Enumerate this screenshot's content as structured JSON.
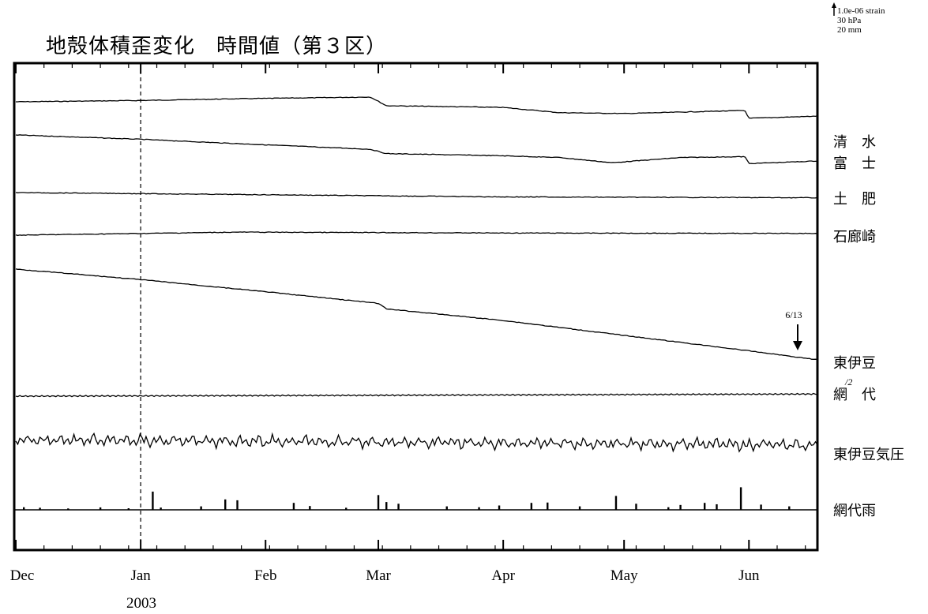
{
  "title": "地殻体積歪変化　時間値（第３区）",
  "scale_legend": [
    "1.0e-06 strain",
    "30 hPa",
    "20 mm"
  ],
  "annotation": {
    "text": "6/13",
    "series": "東伊豆"
  },
  "series_note": "/2",
  "colors": {
    "line": "#000000",
    "background": "#ffffff"
  },
  "chart_data": {
    "type": "line",
    "title": "地殻体積歪変化　時間値（第３区）",
    "x_axis": {
      "ticks": [
        "Dec",
        "Jan",
        "Feb",
        "Mar",
        "Apr",
        "May",
        "Jun"
      ],
      "year_label": "2003",
      "dashed_marker": "Jan"
    },
    "range": {
      "start": "2002-12-01",
      "end": "2003-06-18"
    },
    "grid": false,
    "scale": {
      "strain": "1.0e-06 strain",
      "pressure": "30 hPa",
      "rain": "20 mm"
    },
    "series": [
      {
        "name": "清　水",
        "unit": "strain",
        "x": [
          "2002-12-01",
          "2003-01-01",
          "2003-01-25",
          "2003-02-27",
          "2003-03-03",
          "2003-04-01",
          "2003-04-15",
          "2003-05-01",
          "2003-05-31",
          "2003-06-01",
          "2003-06-18"
        ],
        "y": [
          0,
          0.03,
          0.07,
          0.11,
          -0.09,
          -0.13,
          -0.25,
          -0.27,
          -0.2,
          -0.38,
          -0.33
        ]
      },
      {
        "name": "富　士",
        "unit": "strain",
        "x": [
          "2002-12-01",
          "2003-01-01",
          "2003-01-25",
          "2003-02-27",
          "2003-03-03",
          "2003-04-01",
          "2003-04-15",
          "2003-04-28",
          "2003-05-15",
          "2003-05-31",
          "2003-06-01",
          "2003-06-18"
        ],
        "y": [
          0,
          -0.1,
          -0.2,
          -0.33,
          -0.43,
          -0.48,
          -0.52,
          -0.64,
          -0.52,
          -0.5,
          -0.66,
          -0.6
        ]
      },
      {
        "name": "土　肥",
        "unit": "strain",
        "x": [
          "2002-12-01",
          "2003-02-01",
          "2003-04-01",
          "2003-06-18"
        ],
        "y": [
          0,
          -0.05,
          -0.1,
          -0.12
        ]
      },
      {
        "name": "石廊崎",
        "unit": "strain",
        "x": [
          "2002-12-01",
          "2003-01-25",
          "2003-04-01",
          "2003-06-18"
        ],
        "y": [
          0,
          0.07,
          0.05,
          0.04
        ]
      },
      {
        "name": "東伊豆",
        "unit": "strain",
        "scaled": "/2",
        "x": [
          "2002-12-01",
          "2003-01-01",
          "2003-02-01",
          "2003-03-01",
          "2003-03-03",
          "2003-04-01",
          "2003-05-01",
          "2003-05-31",
          "2003-06-18"
        ],
        "y": [
          0,
          -0.19,
          -0.41,
          -0.62,
          -0.72,
          -0.93,
          -1.2,
          -1.47,
          -1.64
        ]
      },
      {
        "name": "網　代",
        "unit": "strain",
        "x": [
          "2002-12-01",
          "2003-03-01",
          "2003-06-18"
        ],
        "y": [
          0,
          0.02,
          0.05
        ]
      },
      {
        "name": "東伊豆気圧",
        "unit": "hPa",
        "x": [
          "2002-12-01",
          "2003-12-05",
          "2003-01-09",
          "2003-01-16",
          "2003-01-21",
          "2003-01-24",
          "2003-02-16",
          "2003-03-01",
          "2003-03-03",
          "2003-03-05",
          "2003-03-18",
          "2003-04-25",
          "2003-05-31",
          "2003-06-18"
        ],
        "y": [
          0,
          -4,
          -7,
          -9,
          -16,
          -13,
          -8,
          -10,
          -18,
          -15,
          2,
          -6,
          -13,
          -2
        ]
      },
      {
        "name": "網代雨",
        "unit": "mm",
        "type": "bar",
        "x": [
          "2002-12-03",
          "2002-12-07",
          "2002-12-14",
          "2002-12-22",
          "2002-12-29",
          "2003-01-04",
          "2003-01-06",
          "2003-01-16",
          "2003-01-22",
          "2003-01-25",
          "2003-02-08",
          "2003-02-12",
          "2003-02-21",
          "2003-03-01",
          "2003-03-03",
          "2003-03-06",
          "2003-03-18",
          "2003-03-26",
          "2003-03-31",
          "2003-04-08",
          "2003-04-12",
          "2003-04-20",
          "2003-04-29",
          "2003-05-04",
          "2003-05-12",
          "2003-05-15",
          "2003-05-21",
          "2003-05-24",
          "2003-05-30",
          "2003-06-04",
          "2003-06-11"
        ],
        "y": [
          1.5,
          1.2,
          0.8,
          1.4,
          0.9,
          10.5,
          1.3,
          2.0,
          6.0,
          5.5,
          4.0,
          2.2,
          1.2,
          8.5,
          4.5,
          3.5,
          2.0,
          1.5,
          2.5,
          4.0,
          4.2,
          2.0,
          8.0,
          3.5,
          1.5,
          2.8,
          4.0,
          3.2,
          13.0,
          3.0,
          2.0
        ]
      }
    ]
  }
}
